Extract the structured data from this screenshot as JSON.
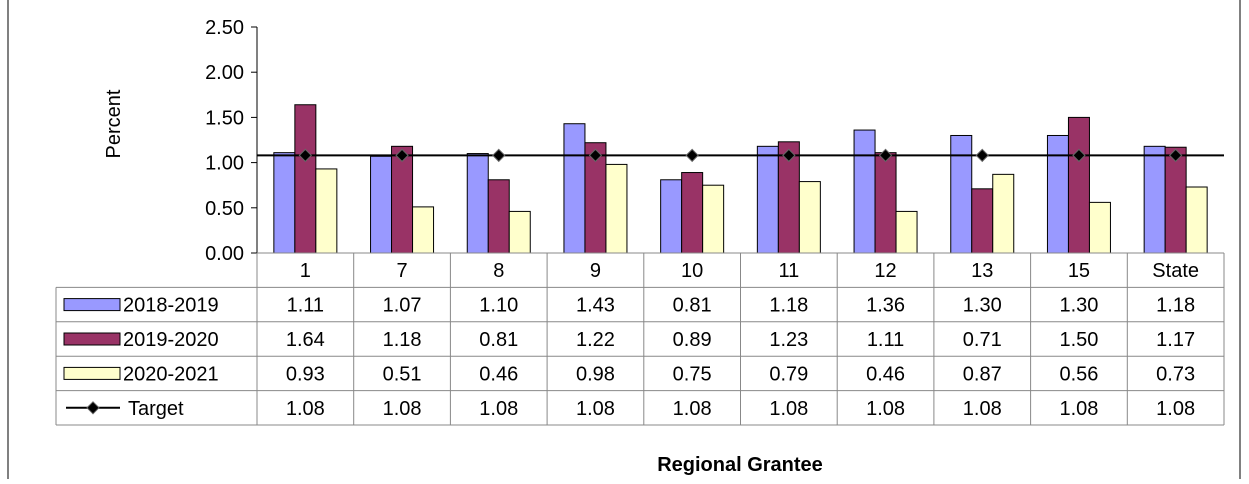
{
  "chart_data": {
    "type": "bar",
    "ylabel": "Percent",
    "xlabel": "Regional Grantee",
    "ylim": [
      0,
      2.5
    ],
    "yticks": [
      "0.00",
      "0.50",
      "1.00",
      "1.50",
      "2.00",
      "2.50"
    ],
    "grid": false,
    "legend": "data-table-left",
    "categories": [
      "1",
      "7",
      "8",
      "9",
      "10",
      "11",
      "12",
      "13",
      "15",
      "State"
    ],
    "series": [
      {
        "name": "2018-2019",
        "kind": "bar",
        "color": "#9999ff",
        "values": [
          1.11,
          1.07,
          1.1,
          1.43,
          0.81,
          1.18,
          1.36,
          1.3,
          1.3,
          1.18
        ],
        "labels": [
          "1.11",
          "1.07",
          "1.10",
          "1.43",
          "0.81",
          "1.18",
          "1.36",
          "1.30",
          "1.30",
          "1.18"
        ]
      },
      {
        "name": "2019-2020",
        "kind": "bar",
        "color": "#993366",
        "values": [
          1.64,
          1.18,
          0.81,
          1.22,
          0.89,
          1.23,
          1.11,
          0.71,
          1.5,
          1.17
        ],
        "labels": [
          "1.64",
          "1.18",
          "0.81",
          "1.22",
          "0.89",
          "1.23",
          "1.11",
          "0.71",
          "1.50",
          "1.17"
        ]
      },
      {
        "name": "2020-2021",
        "kind": "bar",
        "color": "#ffffcc",
        "values": [
          0.93,
          0.51,
          0.46,
          0.98,
          0.75,
          0.79,
          0.46,
          0.87,
          0.56,
          0.73
        ],
        "labels": [
          "0.93",
          "0.51",
          "0.46",
          "0.98",
          "0.75",
          "0.79",
          "0.46",
          "0.87",
          "0.56",
          "0.73"
        ]
      },
      {
        "name": "Target",
        "kind": "line",
        "color": "#000000",
        "values": [
          1.08,
          1.08,
          1.08,
          1.08,
          1.08,
          1.08,
          1.08,
          1.08,
          1.08,
          1.08
        ],
        "labels": [
          "1.08",
          "1.08",
          "1.08",
          "1.08",
          "1.08",
          "1.08",
          "1.08",
          "1.08",
          "1.08",
          "1.08"
        ]
      }
    ]
  }
}
